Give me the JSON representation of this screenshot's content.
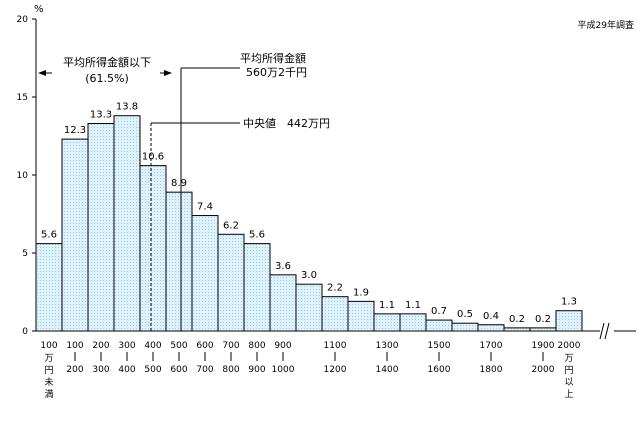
{
  "chart_data": {
    "type": "bar",
    "y_unit": "%",
    "survey_label": "平成29年調査",
    "ylim": [
      0,
      20
    ],
    "yticks": [
      "0",
      "5",
      "10",
      "15",
      "20"
    ],
    "categories": [
      {
        "top": "100",
        "bottom": "万円未満"
      },
      {
        "top": "100",
        "bottom": "200"
      },
      {
        "top": "200",
        "bottom": "300"
      },
      {
        "top": "300",
        "bottom": "400"
      },
      {
        "top": "400",
        "bottom": "500"
      },
      {
        "top": "500",
        "bottom": "600"
      },
      {
        "top": "600",
        "bottom": "700"
      },
      {
        "top": "700",
        "bottom": "800"
      },
      {
        "top": "800",
        "bottom": "900"
      },
      {
        "top": "900",
        "bottom": "1000"
      },
      {
        "top": "1000",
        "bottom": "1100"
      },
      {
        "top": "1100",
        "bottom": "1200"
      },
      {
        "top": "1200",
        "bottom": "1300"
      },
      {
        "top": "1300",
        "bottom": "1400"
      },
      {
        "top": "1400",
        "bottom": "1500"
      },
      {
        "top": "1500",
        "bottom": "1600"
      },
      {
        "top": "1600",
        "bottom": "1700"
      },
      {
        "top": "1700",
        "bottom": "1800"
      },
      {
        "top": "1800",
        "bottom": "1900"
      },
      {
        "top": "1900",
        "bottom": "2000"
      },
      {
        "top": "2000",
        "bottom": "万円以上"
      }
    ],
    "values": [
      5.6,
      12.3,
      13.3,
      13.8,
      10.6,
      8.9,
      7.4,
      6.2,
      5.6,
      3.6,
      3.0,
      2.2,
      1.9,
      1.1,
      1.1,
      0.7,
      0.5,
      0.4,
      0.2,
      0.2,
      1.3
    ],
    "value_labels": [
      "5.6",
      "12.3",
      "13.3",
      "13.8",
      "10.6",
      "8.9",
      "7.4",
      "6.2",
      "5.6",
      "3.6",
      "3.0",
      "2.2",
      "1.9",
      "1.1",
      "1.1",
      "0.7",
      "0.5",
      "0.4",
      "0.2",
      "0.2",
      "1.3"
    ],
    "x_tick_labels": [
      {
        "text": "100",
        "stack": [
          "万",
          "円",
          "未",
          "満"
        ]
      },
      {
        "text": "100",
        "bottom": "200"
      },
      {
        "text": "200",
        "bottom": "300"
      },
      {
        "text": "300",
        "bottom": "400"
      },
      {
        "text": "400",
        "bottom": "500"
      },
      {
        "text": "500",
        "bottom": "600"
      },
      {
        "text": "600",
        "bottom": "700"
      },
      {
        "text": "700",
        "bottom": "800"
      },
      {
        "text": "800",
        "bottom": "900"
      },
      {
        "text": "900",
        "bottom": "1000"
      },
      {
        "text": "1100",
        "bottom": "1200"
      },
      {
        "text": "1300",
        "bottom": "1400"
      },
      {
        "text": "1500",
        "bottom": "1600"
      },
      {
        "text": "1700",
        "bottom": "1800"
      },
      {
        "text": "1900",
        "bottom": "2000"
      },
      {
        "text": "2000",
        "stack": [
          "万",
          "円",
          "以",
          "上"
        ]
      }
    ],
    "annotations": {
      "below_average_label": "平均所得金額以下",
      "below_average_pct": "(61.5%)",
      "average_label": "平均所得金額",
      "average_value": "560万2千円",
      "median_label": "中央値",
      "median_value": "442万円"
    },
    "colors": {
      "bar_fill": "#d6eef8",
      "bar_stroke": "#000000"
    }
  }
}
